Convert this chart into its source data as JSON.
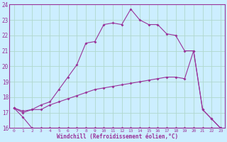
{
  "xlabel": "Windchill (Refroidissement éolien,°C)",
  "bg_color": "#cceeff",
  "line_color": "#993399",
  "grid_color": "#aaddcc",
  "xlim": [
    -0.5,
    23.5
  ],
  "ylim": [
    16,
    24
  ],
  "yticks": [
    16,
    17,
    18,
    19,
    20,
    21,
    22,
    23,
    24
  ],
  "xticks": [
    0,
    1,
    2,
    3,
    4,
    5,
    6,
    7,
    8,
    9,
    10,
    11,
    12,
    13,
    14,
    15,
    16,
    17,
    18,
    19,
    20,
    21,
    22,
    23
  ],
  "line1_x": [
    0,
    1,
    2,
    3,
    4,
    5,
    6,
    7,
    8,
    9,
    10,
    11,
    12,
    13,
    14,
    15,
    16,
    17,
    18,
    19,
    20,
    21,
    22,
    23
  ],
  "line1_y": [
    17.3,
    16.7,
    16.0,
    16.0,
    16.0,
    16.0,
    16.0,
    16.0,
    16.0,
    16.0,
    16.0,
    16.0,
    16.0,
    16.0,
    16.0,
    16.0,
    16.0,
    16.0,
    16.0,
    16.0,
    16.0,
    16.0,
    16.0,
    16.0
  ],
  "line2_x": [
    0,
    1,
    2,
    3,
    4,
    5,
    6,
    7,
    8,
    9,
    10,
    11,
    12,
    13,
    14,
    15,
    16,
    17,
    18,
    19,
    20,
    21,
    22,
    23
  ],
  "line2_y": [
    17.3,
    17.1,
    17.2,
    17.2,
    17.5,
    17.7,
    17.9,
    18.1,
    18.3,
    18.5,
    18.6,
    18.7,
    18.8,
    18.9,
    19.0,
    19.1,
    19.2,
    19.3,
    19.3,
    19.2,
    21.0,
    17.2,
    16.6,
    16.0
  ],
  "line3_x": [
    0,
    1,
    2,
    3,
    4,
    5,
    6,
    7,
    8,
    9,
    10,
    11,
    12,
    13,
    14,
    15,
    16,
    17,
    18,
    19,
    20,
    21,
    22,
    23
  ],
  "line3_y": [
    17.3,
    17.0,
    17.2,
    17.5,
    17.7,
    18.5,
    19.3,
    20.1,
    21.5,
    21.6,
    22.7,
    22.8,
    22.7,
    23.7,
    23.0,
    22.7,
    22.7,
    22.1,
    22.0,
    21.0,
    21.0,
    17.2,
    16.6,
    16.0
  ]
}
